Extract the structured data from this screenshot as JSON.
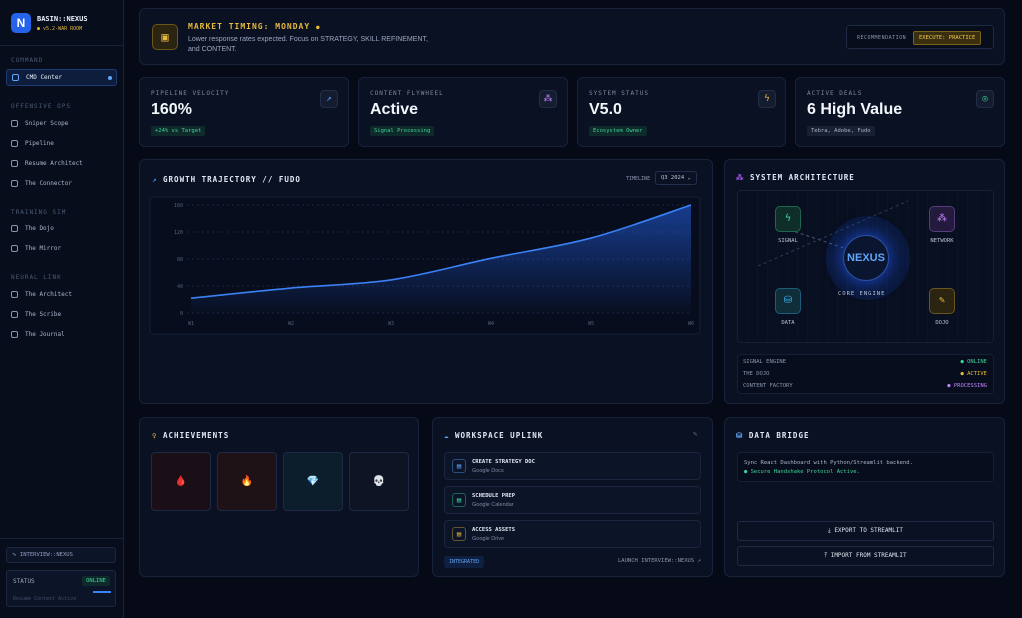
{
  "sidebar": {
    "logo": "N",
    "brand": "BASIN::NEXUS",
    "version": "v5.2-WAR ROOM",
    "sections": [
      {
        "title": "COMMAND",
        "items": [
          "CMD Center"
        ]
      },
      {
        "title": "OFFENSIVE OPS",
        "items": [
          "Sniper Scope",
          "Pipeline",
          "Resume Architect",
          "The Connector"
        ]
      },
      {
        "title": "TRAINING SIM",
        "items": [
          "The Dojo",
          "The Mirror"
        ]
      },
      {
        "title": "NEURAL LINK",
        "items": [
          "The Architect",
          "The Scribe",
          "The Journal"
        ]
      }
    ],
    "interview": "INTERVIEW::NEXUS",
    "status_label": "STATUS",
    "status_value": "ONLINE",
    "status_note": "Resume Context Active"
  },
  "banner": {
    "title": "MARKET TIMING: MONDAY",
    "text": "Lower response rates expected. Focus on STRATEGY, SKILL REFINEMENT, and CONTENT.",
    "rec_label": "RECOMMENDATION",
    "rec_value": "EXECUTE: PRACTICE"
  },
  "kpis": [
    {
      "label": "PIPELINE VELOCITY",
      "value": "160%",
      "tag": "+24% vs Target"
    },
    {
      "label": "CONTENT FLYWHEEL",
      "value": "Active",
      "tag": "Signal Processing"
    },
    {
      "label": "SYSTEM STATUS",
      "value": "V5.0",
      "tag": "Ecosystem Owner"
    },
    {
      "label": "ACTIVE DEALS",
      "value": "6 High Value",
      "tag": "Tebra, Adobe, Fudo"
    }
  ],
  "growth": {
    "timeline_label": "TIMELINE",
    "timeline_value": "Q3 2024"
  },
  "chart_data": {
    "type": "line",
    "title": "GROWTH TRAJECTORY // FUDO",
    "categories": [
      "W1",
      "W2",
      "W3",
      "W4",
      "W5",
      "W6"
    ],
    "values": [
      22,
      37,
      49,
      81,
      111,
      160
    ],
    "color": "#3b82f6",
    "ylim": [
      0,
      160
    ],
    "yticks": [
      0,
      40,
      80,
      120,
      160
    ],
    "grid": true
  },
  "architecture": {
    "title": "SYSTEM ARCHITECTURE",
    "nodes": [
      "SIGNAL",
      "NETWORK",
      "DATA",
      "DOJO"
    ],
    "core": "NEXUS",
    "core_label": "CORE ENGINE",
    "status": [
      {
        "name": "SIGNAL ENGINE",
        "state": "ONLINE"
      },
      {
        "name": "THE DOJO",
        "state": "ACTIVE"
      },
      {
        "name": "CONTENT FACTORY",
        "state": "PROCESSING"
      }
    ]
  },
  "achievements": {
    "title": "ACHIEVEMENTS",
    "badges": [
      "🩸",
      "🔥",
      "💎",
      "💀"
    ]
  },
  "workspace": {
    "title": "WORKSPACE UPLINK",
    "items": [
      {
        "title": "CREATE STRATEGY DOC",
        "app": "Google Docs"
      },
      {
        "title": "SCHEDULE PREP",
        "app": "Google Calendar"
      },
      {
        "title": "ACCESS ASSETS",
        "app": "Google Drive"
      }
    ],
    "badge": "INTEGRATED",
    "launch": "LAUNCH INTERVIEW::NEXUS"
  },
  "data_bridge": {
    "title": "DATA BRIDGE",
    "text": "Sync React Dashboard with Python/Streamlit backend.",
    "status": "Secure Handshake Protocol Active.",
    "export": "EXPORT TO STREAMLIT",
    "import": "IMPORT FROM STREAMLIT"
  }
}
